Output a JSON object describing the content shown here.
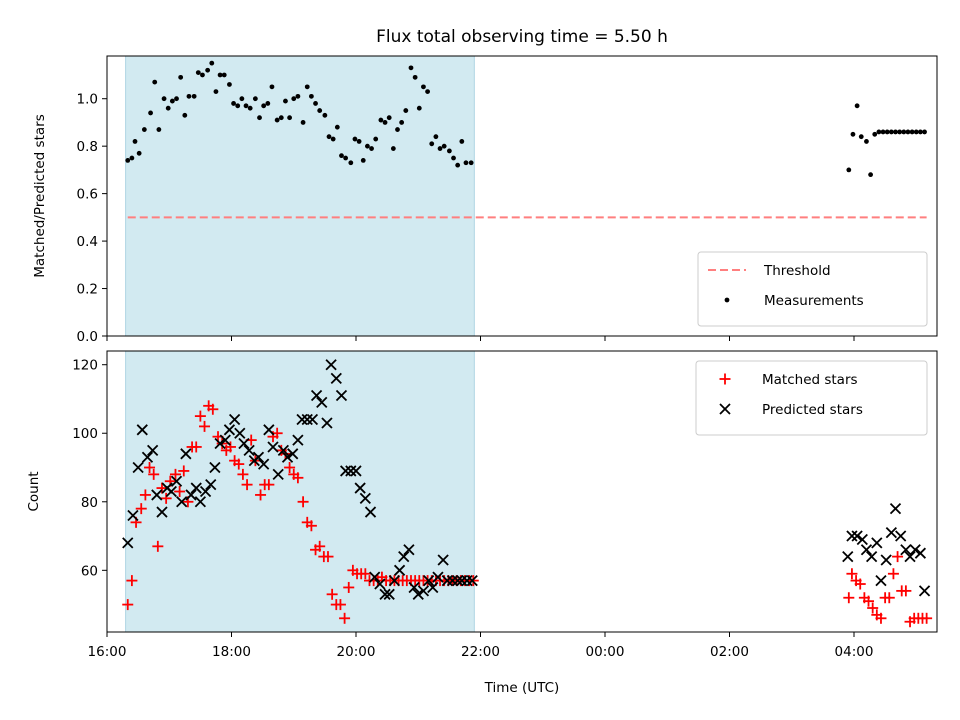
{
  "title": "Flux total observing time = 5.50 h",
  "colors": {
    "shade": "#add8e6",
    "threshold": "#ff7f7f",
    "matched": "#ff0000",
    "predicted": "#000000",
    "measurement": "#000000"
  },
  "x_axis": {
    "label": "Time (UTC)",
    "range": [
      "16:00",
      "05:20"
    ],
    "ticks": [
      {
        "label": "16:00",
        "hour": 16
      },
      {
        "label": "18:00",
        "hour": 18
      },
      {
        "label": "20:00",
        "hour": 20
      },
      {
        "label": "22:00",
        "hour": 22
      },
      {
        "label": "00:00",
        "hour": 24
      },
      {
        "label": "02:00",
        "hour": 26
      },
      {
        "label": "04:00",
        "hour": 28
      }
    ]
  },
  "shaded_interval": {
    "start": "16:18",
    "end": "21:54"
  },
  "chart_data": [
    {
      "type": "scatter",
      "ylabel": "Matched/Predicted stars",
      "ylim": [
        0,
        1.18
      ],
      "yticks": [
        "0.0",
        "0.2",
        "0.4",
        "0.6",
        "0.8",
        "1.0"
      ],
      "threshold": {
        "name": "Threshold",
        "value": 0.5,
        "x_range": [
          "16:20",
          "05:10"
        ],
        "style": "dashed"
      },
      "legend_position": "lower-right",
      "series": [
        {
          "name": "Measurements",
          "x": [
            "16:20",
            "16:24",
            "16:27",
            "16:31",
            "16:36",
            "16:42",
            "16:46",
            "16:50",
            "16:55",
            "16:59",
            "17:03",
            "17:07",
            "17:11",
            "17:15",
            "17:19",
            "17:24",
            "17:28",
            "17:32",
            "17:37",
            "17:41",
            "17:45",
            "17:49",
            "17:53",
            "17:58",
            "18:02",
            "18:06",
            "18:10",
            "18:14",
            "18:18",
            "18:23",
            "18:27",
            "18:31",
            "18:35",
            "18:39",
            "18:44",
            "18:48",
            "18:52",
            "18:56",
            "19:00",
            "19:04",
            "19:09",
            "19:13",
            "19:17",
            "19:21",
            "19:25",
            "19:30",
            "19:34",
            "19:38",
            "19:42",
            "19:46",
            "19:50",
            "19:55",
            "19:59",
            "20:03",
            "20:07",
            "20:11",
            "20:15",
            "20:19",
            "20:24",
            "20:28",
            "20:32",
            "20:36",
            "20:40",
            "20:44",
            "20:48",
            "20:53",
            "20:57",
            "21:01",
            "21:05",
            "21:09",
            "21:13",
            "21:17",
            "21:21",
            "21:25",
            "21:30",
            "21:34",
            "21:38",
            "21:42",
            "21:46",
            "21:51",
            "03:55",
            "03:59",
            "04:03",
            "04:07",
            "04:12",
            "04:16",
            "04:20",
            "04:24",
            "04:28",
            "04:32",
            "04:36",
            "04:40",
            "04:44",
            "04:48",
            "04:52",
            "04:56",
            "05:00",
            "05:04",
            "05:08"
          ],
          "y": [
            0.74,
            0.75,
            0.82,
            0.77,
            0.87,
            0.94,
            1.07,
            0.87,
            1.0,
            0.96,
            0.99,
            1.0,
            1.09,
            0.93,
            1.01,
            1.01,
            1.11,
            1.1,
            1.12,
            1.15,
            1.03,
            1.1,
            1.1,
            1.06,
            0.98,
            0.97,
            1.0,
            0.97,
            0.96,
            1.0,
            0.92,
            0.97,
            0.98,
            1.05,
            0.91,
            0.92,
            0.99,
            0.92,
            1.0,
            1.01,
            0.9,
            1.05,
            1.01,
            0.98,
            0.95,
            0.93,
            0.84,
            0.83,
            0.88,
            0.76,
            0.75,
            0.73,
            0.83,
            0.82,
            0.74,
            0.8,
            0.79,
            0.83,
            0.91,
            0.9,
            0.92,
            0.79,
            0.87,
            0.9,
            0.95,
            1.13,
            1.09,
            0.96,
            1.05,
            1.03,
            0.81,
            0.84,
            0.79,
            0.8,
            0.78,
            0.75,
            0.72,
            0.82,
            0.73,
            0.73,
            0.7,
            0.85,
            0.97,
            0.84,
            0.82,
            0.68,
            0.85,
            0.86,
            0.86,
            0.86,
            0.86,
            0.86,
            0.86,
            0.86,
            0.86,
            0.86,
            0.86,
            0.86,
            0.86
          ]
        }
      ]
    },
    {
      "type": "scatter",
      "ylabel": "Count",
      "ylim": [
        42,
        124
      ],
      "yticks": [
        "60",
        "80",
        "100",
        "120"
      ],
      "legend_position": "upper-right",
      "series": [
        {
          "name": "Matched stars",
          "marker": "+",
          "x": [
            "16:20",
            "16:24",
            "16:28",
            "16:33",
            "16:37",
            "16:41",
            "16:45",
            "16:49",
            "16:53",
            "16:57",
            "17:01",
            "17:06",
            "17:10",
            "17:14",
            "17:18",
            "17:22",
            "17:26",
            "17:30",
            "17:34",
            "17:38",
            "17:42",
            "17:47",
            "17:51",
            "17:55",
            "17:59",
            "18:03",
            "18:07",
            "18:11",
            "18:15",
            "18:19",
            "18:23",
            "18:28",
            "18:32",
            "18:36",
            "18:40",
            "18:44",
            "18:48",
            "18:52",
            "18:56",
            "19:00",
            "19:04",
            "19:09",
            "19:13",
            "19:17",
            "19:21",
            "19:25",
            "19:29",
            "19:33",
            "19:37",
            "19:41",
            "19:45",
            "19:49",
            "19:53",
            "19:57",
            "20:01",
            "20:05",
            "20:09",
            "20:13",
            "20:17",
            "20:21",
            "20:25",
            "20:29",
            "20:33",
            "20:37",
            "20:41",
            "20:45",
            "20:49",
            "20:53",
            "20:57",
            "21:01",
            "21:05",
            "21:09",
            "21:13",
            "21:17",
            "21:21",
            "21:25",
            "21:29",
            "21:33",
            "21:37",
            "21:41",
            "21:45",
            "21:49",
            "21:53",
            "03:55",
            "03:58",
            "04:02",
            "04:06",
            "04:10",
            "04:14",
            "04:18",
            "04:22",
            "04:26",
            "04:30",
            "04:34",
            "04:38",
            "04:42",
            "04:46",
            "04:50",
            "04:54",
            "04:58",
            "05:02",
            "05:06",
            "05:10"
          ],
          "y": [
            50,
            57,
            74,
            78,
            82,
            90,
            88,
            67,
            84,
            81,
            86,
            88,
            83,
            89,
            80,
            96,
            96,
            105,
            102,
            108,
            107,
            99,
            97,
            95,
            96,
            92,
            91,
            88,
            85,
            98,
            92,
            82,
            85,
            85,
            99,
            100,
            95,
            94,
            90,
            88,
            87,
            80,
            74,
            73,
            66,
            67,
            64,
            64,
            53,
            50,
            50,
            46,
            55,
            60,
            59,
            59,
            59,
            57,
            57,
            57,
            58,
            57,
            57,
            57,
            57,
            57,
            57,
            57,
            57,
            57,
            57,
            57,
            57,
            57,
            57,
            57,
            57,
            57,
            57,
            57,
            57,
            57,
            57,
            52,
            59,
            57,
            56,
            52,
            51,
            49,
            47,
            46,
            52,
            52,
            59,
            64,
            54,
            54,
            45,
            46,
            46,
            46,
            46
          ],
          "_note": ""
        },
        {
          "name": "Predicted stars",
          "marker": "x",
          "x": [
            "16:20",
            "16:25",
            "16:30",
            "16:34",
            "16:39",
            "16:44",
            "16:48",
            "16:53",
            "16:58",
            "17:02",
            "17:07",
            "17:12",
            "17:16",
            "17:21",
            "17:26",
            "17:30",
            "17:35",
            "17:40",
            "17:44",
            "17:49",
            "17:54",
            "17:58",
            "18:03",
            "18:08",
            "18:12",
            "18:17",
            "18:22",
            "18:26",
            "18:31",
            "18:36",
            "18:40",
            "18:45",
            "18:50",
            "18:54",
            "18:59",
            "19:04",
            "19:08",
            "19:13",
            "19:18",
            "19:22",
            "19:27",
            "19:32",
            "19:36",
            "19:41",
            "19:46",
            "19:50",
            "19:55",
            "20:00",
            "20:04",
            "20:09",
            "20:14",
            "20:18",
            "20:23",
            "20:28",
            "20:32",
            "20:37",
            "20:42",
            "20:46",
            "20:51",
            "20:56",
            "21:00",
            "21:05",
            "21:10",
            "21:14",
            "21:19",
            "21:24",
            "21:28",
            "21:33",
            "21:38",
            "21:42",
            "21:47",
            "21:52",
            "03:54",
            "03:58",
            "04:03",
            "04:08",
            "04:12",
            "04:17",
            "04:22",
            "04:26",
            "04:31",
            "04:36",
            "04:40",
            "04:45",
            "04:50",
            "04:54",
            "04:59",
            "05:04",
            "05:08"
          ],
          "y": [
            68,
            76,
            90,
            101,
            93,
            95,
            82,
            77,
            84,
            83,
            86,
            80,
            94,
            82,
            84,
            80,
            83,
            85,
            90,
            97,
            98,
            101,
            104,
            100,
            97,
            95,
            92,
            93,
            91,
            101,
            96,
            88,
            95,
            93,
            94,
            98,
            104,
            104,
            104,
            111,
            109,
            103,
            120,
            116,
            111,
            89,
            89,
            89,
            84,
            81,
            77,
            58,
            56,
            53,
            53,
            57,
            60,
            64,
            66,
            55,
            53,
            54,
            57,
            55,
            58,
            63,
            57,
            57,
            57,
            57,
            57,
            57,
            64,
            70,
            70,
            69,
            66,
            64,
            68,
            57,
            63,
            71,
            78,
            70,
            66,
            64,
            66,
            65,
            54
          ]
        }
      ]
    }
  ]
}
